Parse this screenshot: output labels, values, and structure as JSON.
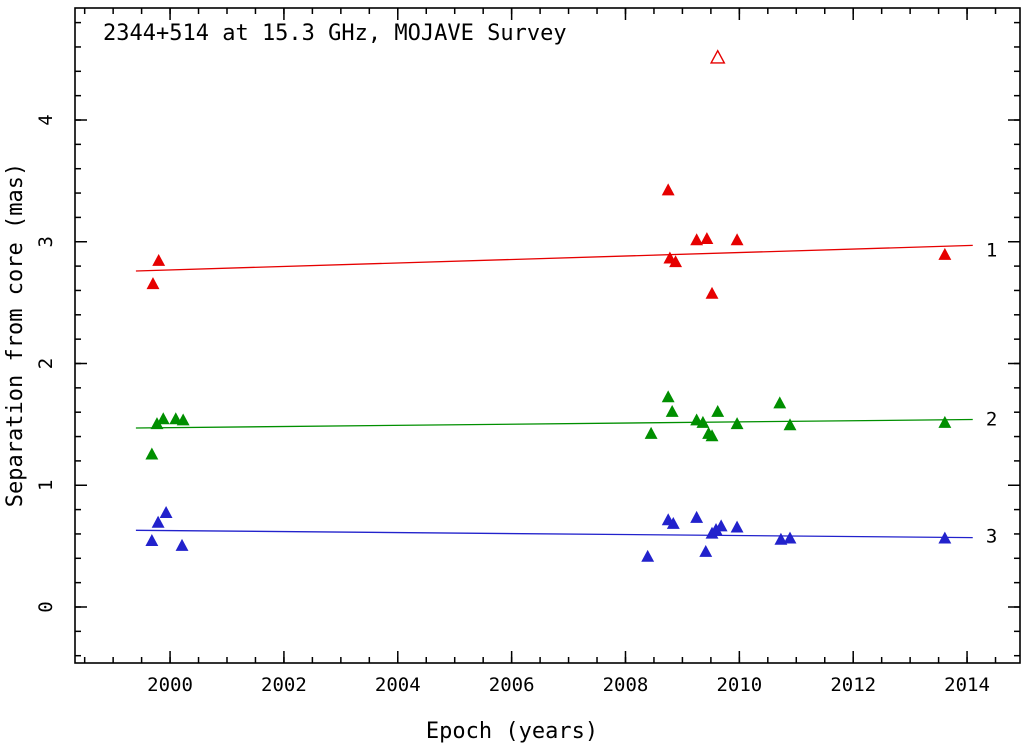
{
  "figure": {
    "title": "2344+514 at 15.3 GHz, MOJAVE Survey",
    "xlabel": "Epoch (years)",
    "ylabel": "Separation from core (mas)"
  },
  "chart_data": {
    "type": "scatter",
    "title": "2344+514 at 15.3 GHz, MOJAVE Survey",
    "xlabel": "Epoch (years)",
    "ylabel": "Separation from core (mas)",
    "xlim": [
      1998.33,
      2014.93
    ],
    "ylim": [
      -0.46,
      4.92
    ],
    "xticks": [
      2000,
      2002,
      2004,
      2006,
      2008,
      2010,
      2012,
      2014
    ],
    "yticks": [
      0,
      1,
      2,
      3,
      4
    ],
    "x_minor_step": 0.5,
    "y_minor_step": 0.2,
    "grid": false,
    "legend_position": "right-of-fit-lines",
    "frame_color": "#000000",
    "marker": "filled-triangle-up",
    "series": [
      {
        "id": "component-1",
        "label": "1",
        "color": "#e60000",
        "points": [
          [
            1999.7,
            2.65
          ],
          [
            1999.8,
            2.84
          ],
          [
            2008.75,
            3.42
          ],
          [
            2008.78,
            2.86
          ],
          [
            2008.88,
            2.83
          ],
          [
            2009.25,
            3.01
          ],
          [
            2009.43,
            3.02
          ],
          [
            2009.52,
            2.57
          ],
          [
            2009.96,
            3.01
          ],
          [
            2013.61,
            2.89
          ]
        ],
        "open_points": [
          [
            2009.62,
            4.51
          ]
        ],
        "fit_line": {
          "x": [
            1999.4,
            2014.1
          ],
          "y": [
            2.76,
            2.97
          ]
        },
        "label_pos": [
          2014.33,
          2.93
        ]
      },
      {
        "id": "component-2",
        "label": "2",
        "color": "#008f00",
        "points": [
          [
            1999.68,
            1.25
          ],
          [
            1999.77,
            1.5
          ],
          [
            1999.88,
            1.54
          ],
          [
            2000.1,
            1.54
          ],
          [
            2000.23,
            1.53
          ],
          [
            2008.45,
            1.42
          ],
          [
            2008.75,
            1.72
          ],
          [
            2008.82,
            1.6
          ],
          [
            2009.25,
            1.53
          ],
          [
            2009.36,
            1.51
          ],
          [
            2009.46,
            1.42
          ],
          [
            2009.52,
            1.4
          ],
          [
            2009.62,
            1.6
          ],
          [
            2009.96,
            1.5
          ],
          [
            2010.71,
            1.67
          ],
          [
            2010.89,
            1.49
          ],
          [
            2013.61,
            1.51
          ]
        ],
        "open_points": [],
        "fit_line": {
          "x": [
            1999.4,
            2014.1
          ],
          "y": [
            1.47,
            1.54
          ]
        },
        "label_pos": [
          2014.33,
          1.54
        ]
      },
      {
        "id": "component-3",
        "label": "3",
        "color": "#2222cc",
        "points": [
          [
            1999.68,
            0.54
          ],
          [
            1999.79,
            0.69
          ],
          [
            1999.93,
            0.77
          ],
          [
            2000.21,
            0.5
          ],
          [
            2008.39,
            0.41
          ],
          [
            2008.75,
            0.71
          ],
          [
            2008.84,
            0.68
          ],
          [
            2009.25,
            0.73
          ],
          [
            2009.41,
            0.45
          ],
          [
            2009.52,
            0.6
          ],
          [
            2009.59,
            0.63
          ],
          [
            2009.68,
            0.66
          ],
          [
            2009.96,
            0.65
          ],
          [
            2010.73,
            0.55
          ],
          [
            2010.89,
            0.56
          ],
          [
            2013.61,
            0.56
          ]
        ],
        "open_points": [],
        "fit_line": {
          "x": [
            1999.4,
            2014.1
          ],
          "y": [
            0.63,
            0.57
          ]
        },
        "label_pos": [
          2014.33,
          0.58
        ]
      }
    ]
  }
}
